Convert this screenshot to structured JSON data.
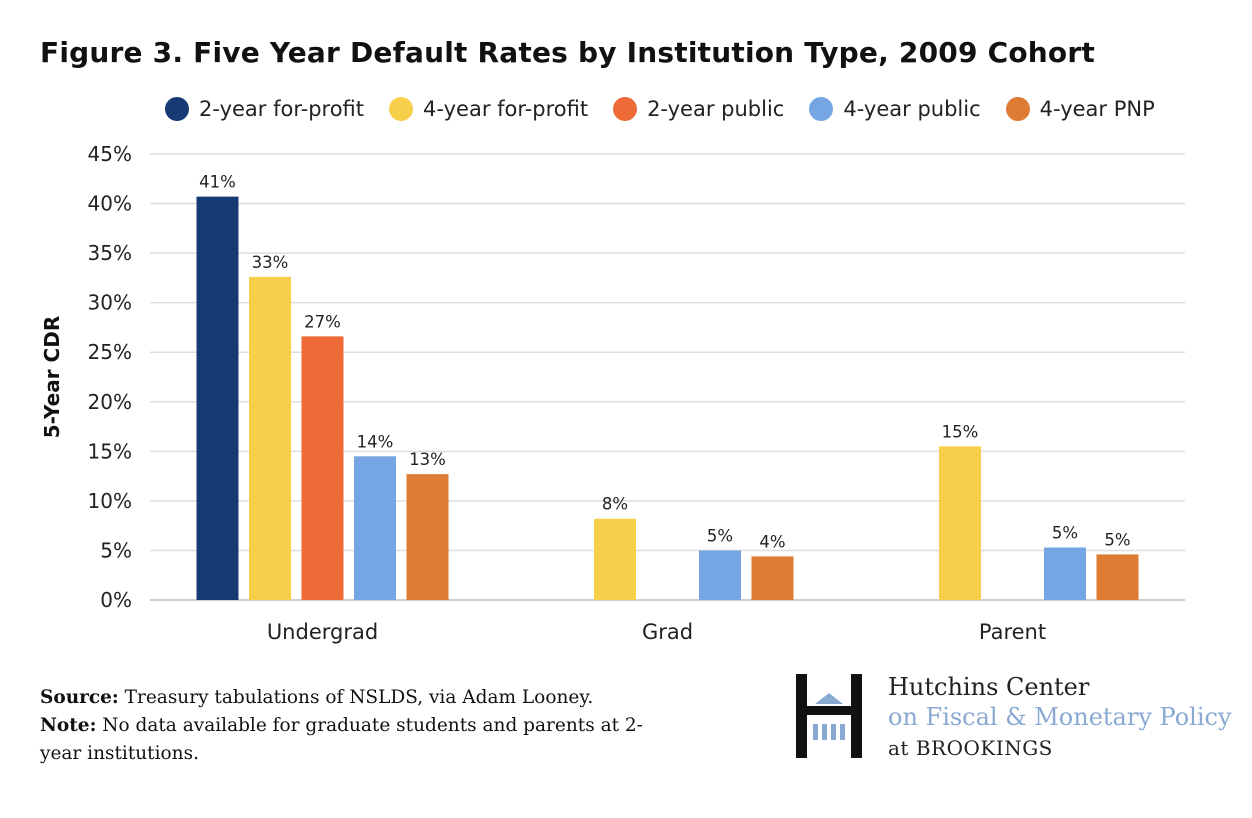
{
  "chart_data": {
    "type": "bar",
    "title": "Figure 3. Five Year Default Rates by Institution Type, 2009 Cohort",
    "ylabel": "5-Year CDR",
    "xlabel": "",
    "ylim": [
      0,
      45
    ],
    "y_ticks": [
      0,
      5,
      10,
      15,
      20,
      25,
      30,
      35,
      40,
      45
    ],
    "y_tick_labels": [
      "0%",
      "5%",
      "10%",
      "15%",
      "20%",
      "25%",
      "30%",
      "35%",
      "40%",
      "45%"
    ],
    "grid": true,
    "legend": "top",
    "categories": [
      "Undergrad",
      "Grad",
      "Parent"
    ],
    "series": [
      {
        "name": "2-year for-profit",
        "color": "#163a73",
        "values": [
          40.7,
          null,
          null
        ],
        "labels": [
          "41%",
          null,
          null
        ]
      },
      {
        "name": "4-year for-profit",
        "color": "#f8cf4a",
        "values": [
          32.6,
          8.2,
          15.5
        ],
        "labels": [
          "33%",
          "8%",
          "15%"
        ]
      },
      {
        "name": "2-year public",
        "color": "#ee6b38",
        "values": [
          26.6,
          null,
          null
        ],
        "labels": [
          "27%",
          null,
          null
        ]
      },
      {
        "name": "4-year public",
        "color": "#75a5e2",
        "values": [
          14.5,
          5.0,
          5.3
        ],
        "labels": [
          "14%",
          "5%",
          "5%"
        ]
      },
      {
        "name": "4-year PNP",
        "color": "#de7c35",
        "values": [
          12.7,
          4.4,
          4.6
        ],
        "labels": [
          "13%",
          "4%",
          "5%"
        ]
      }
    ]
  },
  "notes": {
    "source_label": "Source:",
    "source_text": "Treasury tabulations of NSLDS, via Adam Looney.",
    "note_label": "Note:",
    "note_text": "No data available for graduate students and parents at 2-year institutions."
  },
  "logo": {
    "line1": "Hutchins Center",
    "line2": "on Fiscal & Monetary Policy",
    "line3": "at BROOKINGS",
    "mark_color": "#111111",
    "accent_color": "#8aa9d2"
  }
}
